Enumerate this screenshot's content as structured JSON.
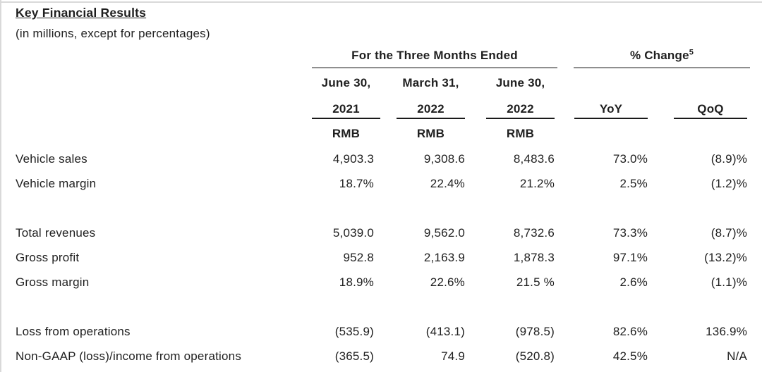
{
  "page": {
    "title": "Key Financial Results",
    "subtitle": "(in millions, except for percentages)"
  },
  "table": {
    "group_headers": [
      {
        "label": "For the Three Months Ended",
        "sup": ""
      },
      {
        "label": "% Change",
        "sup": "5"
      }
    ],
    "columns": [
      {
        "line1": "June 30,",
        "line2": "2021",
        "unit": "RMB"
      },
      {
        "line1": "March 31,",
        "line2": "2022",
        "unit": "RMB"
      },
      {
        "line1": "June 30,",
        "line2": "2022",
        "unit": "RMB"
      },
      {
        "line1": "",
        "line2": "YoY",
        "unit": ""
      },
      {
        "line1": "",
        "line2": "QoQ",
        "unit": ""
      }
    ],
    "rows": [
      {
        "label": "Vehicle sales",
        "values": [
          "4,903.3",
          "9,308.6",
          "8,483.6",
          "73.0%",
          "(8.9)%"
        ]
      },
      {
        "label": "Vehicle margin",
        "values": [
          "18.7%",
          "22.4%",
          "21.2%",
          "2.5%",
          "(1.2)%"
        ]
      },
      {
        "spacer": true
      },
      {
        "label": "Total revenues",
        "values": [
          "5,039.0",
          "9,562.0",
          "8,732.6",
          "73.3%",
          "(8.7)%"
        ]
      },
      {
        "label": "Gross profit",
        "values": [
          "952.8",
          "2,163.9",
          "1,878.3",
          "97.1%",
          "(13.2)%"
        ]
      },
      {
        "label": "Gross margin",
        "values": [
          "18.9%",
          "22.6%",
          "21.5 %",
          "2.6%",
          "(1.1)%"
        ]
      },
      {
        "spacer": true
      },
      {
        "label": "Loss from operations",
        "values": [
          "(535.9)",
          "(413.1)",
          "(978.5)",
          "82.6%",
          "136.9%"
        ]
      },
      {
        "label": "Non-GAAP (loss)/income from operations",
        "values": [
          "(365.5)",
          "74.9",
          "(520.8)",
          "42.5%",
          "N/A"
        ]
      }
    ]
  },
  "colors": {
    "text": "#1f1f1f",
    "rule_gray": "#8f8f8f",
    "rule_black": "#1a1a1a",
    "frame_gray": "#d9d9d9",
    "background": "#ffffff"
  }
}
